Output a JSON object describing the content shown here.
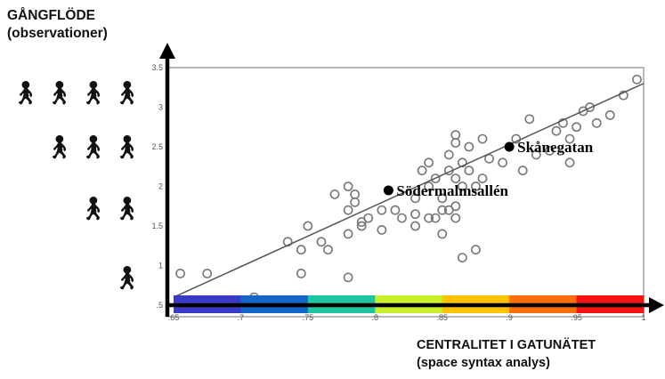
{
  "labels": {
    "y_title": [
      "GÅNGFLÖDE",
      "(observationer)"
    ],
    "x_title": [
      "CENTRALITET I GATUNÄTET",
      "(space syntax analys)"
    ]
  },
  "chart_data": {
    "type": "scatter",
    "xlabel": "CENTRALITET I GATUNÄTET (space syntax analys)",
    "ylabel": "GÅNGFLÖDE (observationer)",
    "xlim": [
      0.65,
      1.0
    ],
    "ylim": [
      0.5,
      3.5
    ],
    "x_ticks": [
      ".65",
      ".7",
      ".75",
      ".8",
      ".85",
      ".9",
      ".95",
      "1"
    ],
    "y_ticks": [
      ".5",
      "1",
      "1.5",
      "2",
      "2.5",
      "3",
      "3.5"
    ],
    "points": [
      [
        0.655,
        0.9
      ],
      [
        0.675,
        0.9
      ],
      [
        0.71,
        0.6
      ],
      [
        0.735,
        1.3
      ],
      [
        0.745,
        1.2
      ],
      [
        0.745,
        0.9
      ],
      [
        0.75,
        1.5
      ],
      [
        0.76,
        1.3
      ],
      [
        0.765,
        1.2
      ],
      [
        0.77,
        1.9
      ],
      [
        0.78,
        1.4
      ],
      [
        0.78,
        1.7
      ],
      [
        0.78,
        0.85
      ],
      [
        0.78,
        2.0
      ],
      [
        0.785,
        1.9
      ],
      [
        0.785,
        1.8
      ],
      [
        0.79,
        1.55
      ],
      [
        0.795,
        1.6
      ],
      [
        0.79,
        1.5
      ],
      [
        0.805,
        1.45
      ],
      [
        0.805,
        1.7
      ],
      [
        0.815,
        1.7
      ],
      [
        0.82,
        1.6
      ],
      [
        0.83,
        1.5
      ],
      [
        0.84,
        1.6
      ],
      [
        0.83,
        1.85
      ],
      [
        0.835,
        2.2
      ],
      [
        0.84,
        2.3
      ],
      [
        0.845,
        1.6
      ],
      [
        0.85,
        1.4
      ],
      [
        0.85,
        1.7
      ],
      [
        0.85,
        1.85
      ],
      [
        0.855,
        1.7
      ],
      [
        0.86,
        1.75
      ],
      [
        0.84,
        2.0
      ],
      [
        0.845,
        2.1
      ],
      [
        0.855,
        2.2
      ],
      [
        0.86,
        2.1
      ],
      [
        0.865,
        2.0
      ],
      [
        0.855,
        2.4
      ],
      [
        0.86,
        2.55
      ],
      [
        0.865,
        2.3
      ],
      [
        0.87,
        2.5
      ],
      [
        0.86,
        2.65
      ],
      [
        0.87,
        2.2
      ],
      [
        0.875,
        2.0
      ],
      [
        0.88,
        2.6
      ],
      [
        0.885,
        2.35
      ],
      [
        0.88,
        2.1
      ],
      [
        0.895,
        2.3
      ],
      [
        0.905,
        2.6
      ],
      [
        0.915,
        2.85
      ],
      [
        0.92,
        2.4
      ],
      [
        0.91,
        2.2
      ],
      [
        0.93,
        2.45
      ],
      [
        0.935,
        2.7
      ],
      [
        0.94,
        2.8
      ],
      [
        0.945,
        2.3
      ],
      [
        0.945,
        2.6
      ],
      [
        0.95,
        2.75
      ],
      [
        0.955,
        2.95
      ],
      [
        0.96,
        3.0
      ],
      [
        0.965,
        2.8
      ],
      [
        0.975,
        2.9
      ],
      [
        0.985,
        3.15
      ],
      [
        0.995,
        3.35
      ],
      [
        0.865,
        1.1
      ],
      [
        0.875,
        1.2
      ],
      [
        0.86,
        1.6
      ],
      [
        0.83,
        1.65
      ]
    ],
    "regression": {
      "x": [
        0.65,
        1.0
      ],
      "y": [
        0.6,
        3.3
      ]
    },
    "annotations": [
      {
        "label": "Skånegatan",
        "x": 0.9,
        "y": 2.5
      },
      {
        "label": "Södermalmsallén",
        "x": 0.81,
        "y": 1.95
      }
    ],
    "color_scale": [
      "#3a3ac8",
      "#1465c9",
      "#1dc6a0",
      "#c9f02a",
      "#fdc300",
      "#fb6e0a",
      "#f41212"
    ],
    "grid": false
  },
  "pictograms": {
    "icon": "pedestrian-icon",
    "rows": [
      4,
      3,
      2,
      1
    ]
  }
}
